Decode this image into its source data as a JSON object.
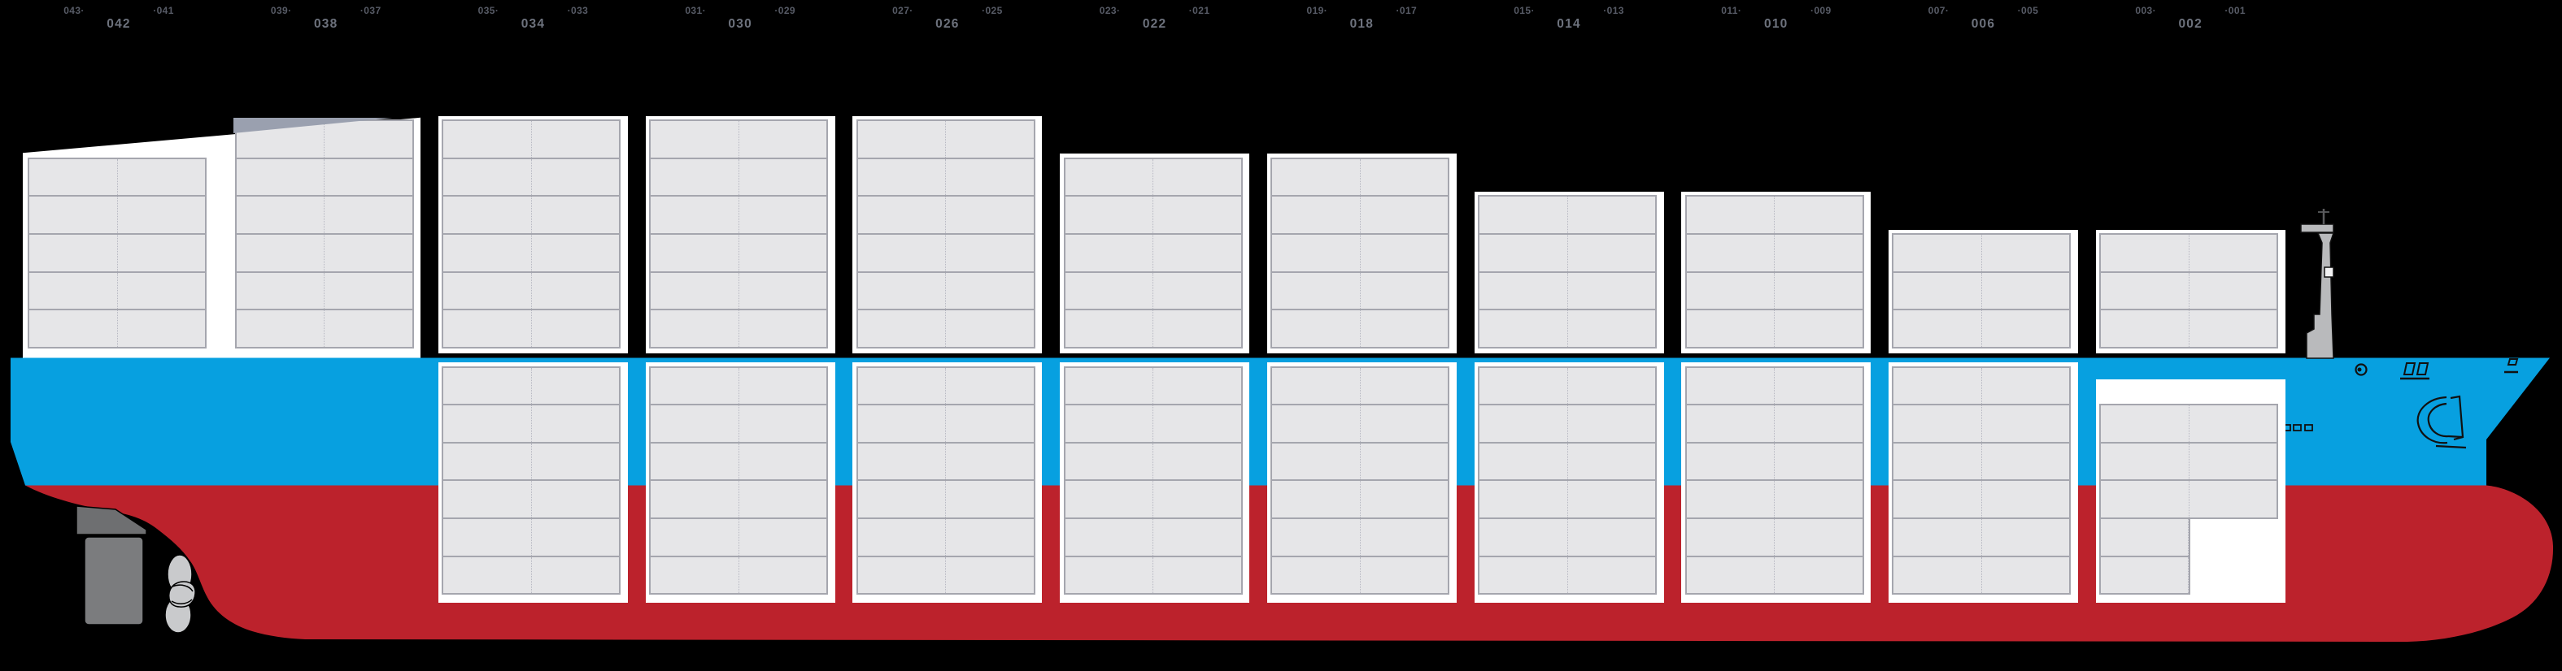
{
  "view": {
    "type": "vessel-stowage-side-profile"
  },
  "colors": {
    "background": "#000000",
    "hull_blue": "#07a0e0",
    "hull_red": "#bc222c",
    "frame_white": "#ffffff",
    "container_fill": "#e6e6e8",
    "container_border": "#a5a6ae",
    "container_divider": "#b7b8c2",
    "wedge_grey": "#9aa0af",
    "metal_grey": "#b9babc",
    "rudder_grey_upper": "#6e6f71",
    "rudder_grey_lower": "#7b7c7e",
    "propeller_grey": "#c9cacc",
    "label_odd": "#575b66",
    "label_even": "#6d727d"
  },
  "bays": [
    {
      "bay": "042",
      "label": "042",
      "label_left": "043·",
      "label_right": "·041",
      "deck_tiers": 5,
      "hold_tiers": 0,
      "deck_frame": false,
      "deck_wedge": false
    },
    {
      "bay": "038",
      "label": "038",
      "label_left": "039·",
      "label_right": "·037",
      "deck_tiers": 6,
      "hold_tiers": 0,
      "deck_frame": false,
      "deck_wedge": true
    },
    {
      "bay": "034",
      "label": "034",
      "label_left": "035·",
      "label_right": "·033",
      "deck_tiers": 6,
      "hold_tiers": 6,
      "deck_frame": true,
      "deck_wedge": false
    },
    {
      "bay": "030",
      "label": "030",
      "label_left": "031·",
      "label_right": "·029",
      "deck_tiers": 6,
      "hold_tiers": 6,
      "deck_frame": true,
      "deck_wedge": false
    },
    {
      "bay": "026",
      "label": "026",
      "label_left": "027·",
      "label_right": "·025",
      "deck_tiers": 6,
      "hold_tiers": 6,
      "deck_frame": true,
      "deck_wedge": false
    },
    {
      "bay": "022",
      "label": "022",
      "label_left": "023·",
      "label_right": "·021",
      "deck_tiers": 5,
      "hold_tiers": 6,
      "deck_frame": true,
      "deck_wedge": false
    },
    {
      "bay": "018",
      "label": "018",
      "label_left": "019·",
      "label_right": "·017",
      "deck_tiers": 5,
      "hold_tiers": 6,
      "deck_frame": true,
      "deck_wedge": false
    },
    {
      "bay": "014",
      "label": "014",
      "label_left": "015·",
      "label_right": "·013",
      "deck_tiers": 4,
      "hold_tiers": 6,
      "deck_frame": true,
      "deck_wedge": false
    },
    {
      "bay": "010",
      "label": "010",
      "label_left": "011·",
      "label_right": "·009",
      "deck_tiers": 4,
      "hold_tiers": 6,
      "deck_frame": true,
      "deck_wedge": false
    },
    {
      "bay": "006",
      "label": "006",
      "label_left": "007·",
      "label_right": "·005",
      "deck_tiers": 3,
      "hold_tiers": 6,
      "deck_frame": true,
      "deck_wedge": false
    },
    {
      "bay": "002",
      "label": "002",
      "label_left": "003·",
      "label_right": "·001",
      "deck_tiers": 3,
      "hold_tiers": 5,
      "deck_frame": true,
      "deck_wedge": false,
      "hold_partial": {
        "empty_top_tiers": 1,
        "full_width_tiers": 3,
        "left_only_tiers": 2
      }
    }
  ],
  "ship": {
    "stern_parts": [
      "stern-superstructure",
      "rudder",
      "propeller"
    ],
    "bow_parts": [
      "foremast",
      "anchor-icon",
      "porthole-icon",
      "mooring-chock-icons",
      "bow-chock-icon",
      "freeing-port-icons"
    ],
    "hull_parts": [
      "hull-above-waterline",
      "hull-below-waterline"
    ]
  }
}
